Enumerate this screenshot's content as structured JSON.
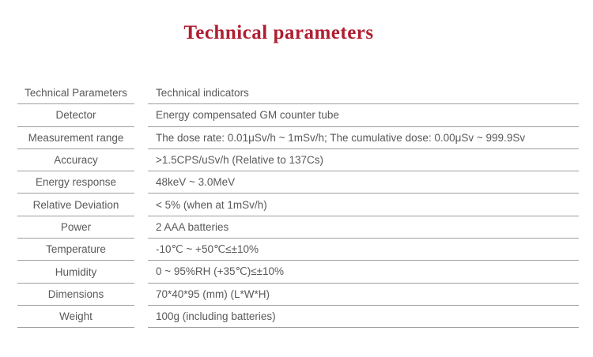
{
  "page": {
    "title": "Technical parameters",
    "title_color": "#b01e32",
    "text_color": "#595959",
    "rule_color": "#9e9e9e"
  },
  "table": {
    "rows": [
      {
        "param": "Technical Parameters",
        "value": "Technical indicators"
      },
      {
        "param": "Detector",
        "value": "Energy compensated GM counter tube"
      },
      {
        "param": "Measurement range",
        "value": "The dose rate: 0.01μSv/h ~ 1mSv/h; The cumulative dose: 0.00μSv ~ 999.9Sv"
      },
      {
        "param": "Accuracy",
        "value": ">1.5CPS/uSv/h (Relative to 137Cs)"
      },
      {
        "param": "Energy response",
        "value": "48keV ~ 3.0MeV"
      },
      {
        "param": "Relative Deviation",
        "value": "< 5% (when at 1mSv/h)"
      },
      {
        "param": "Power",
        "value": "2 AAA batteries"
      },
      {
        "param": "Temperature",
        "value": "-10℃ ~ +50℃≤±10%"
      },
      {
        "param": "Humidity",
        "value": "0 ~ 95%RH (+35℃)≤±10%"
      },
      {
        "param": "Dimensions",
        "value": "70*40*95 (mm) (L*W*H)"
      },
      {
        "param": "Weight",
        "value": "100g (including batteries)"
      }
    ]
  }
}
